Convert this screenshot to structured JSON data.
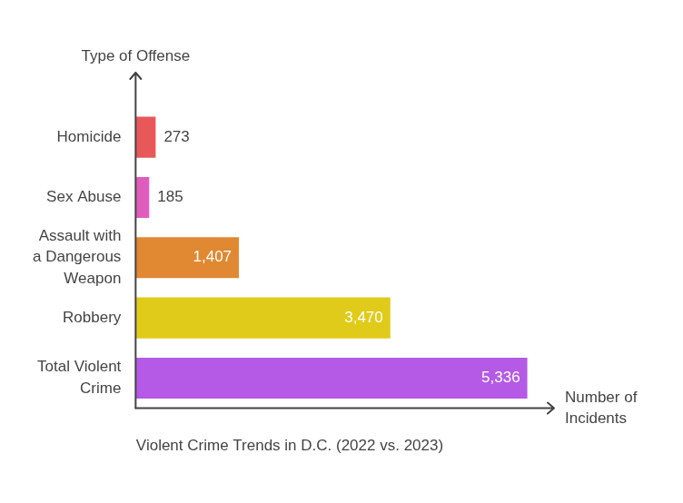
{
  "chart_data": {
    "type": "bar",
    "orientation": "horizontal",
    "title": "Violent Crime Trends in D.C. (2022 vs. 2023)",
    "x_label": "Number of Incidents",
    "y_label": "Type of Offense",
    "categories": [
      "Homicide",
      "Sex Abuse",
      "Assault with a Dangerous Weapon",
      "Robbery",
      "Total Violent Crime"
    ],
    "values": [
      273,
      185,
      1407,
      3470,
      5336
    ],
    "value_labels": [
      "273",
      "185",
      "1,407",
      "3,470",
      "5,336"
    ],
    "colors": [
      "#e85858",
      "#e05cbc",
      "#e08832",
      "#e0cb1a",
      "#b45ae6"
    ],
    "xlim": [
      0,
      5700
    ],
    "grid": false,
    "data_labels": true,
    "tick_labels": "y"
  }
}
